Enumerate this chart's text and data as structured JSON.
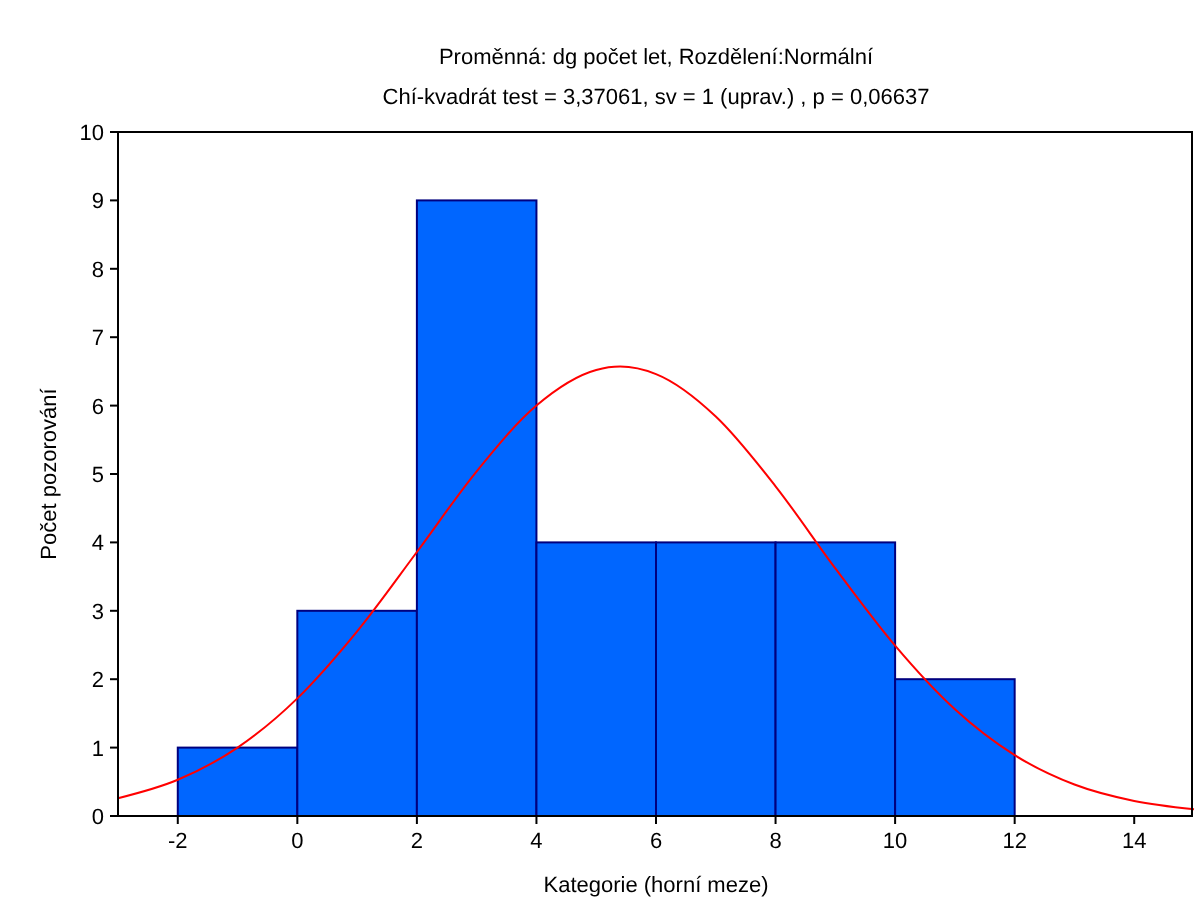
{
  "chart_data": {
    "type": "histogram",
    "title": "Proměnná: dg počet let, Rozdělení:Normální",
    "subtitle": "Chí-kvadrát test = 3,37061, sv = 1 (uprav.) , p = 0,06637",
    "xlabel": "Kategorie (horní meze)",
    "ylabel": "Počet pozorování",
    "bins": [
      -2,
      0,
      2,
      4,
      6,
      8,
      10,
      12
    ],
    "series": [
      {
        "color": "#0066ff",
        "values": [
          1,
          3,
          9,
          4,
          4,
          4,
          2
        ]
      },
      {
        "type": "line",
        "color": "#ff0000",
        "x": [
          -3,
          -2,
          -1,
          0,
          1,
          2,
          3,
          4,
          5,
          5.4,
          6,
          7,
          8,
          9,
          10,
          11,
          12,
          13,
          14,
          15
        ],
        "values": [
          0.26,
          0.53,
          1.0,
          1.72,
          2.7,
          3.86,
          5.04,
          6.0,
          6.52,
          6.57,
          6.46,
          5.84,
          4.82,
          3.62,
          2.49,
          1.56,
          0.89,
          0.46,
          0.22,
          0.1
        ]
      }
    ],
    "xlim": [
      -3,
      15
    ],
    "xticks": [
      -2,
      0,
      2,
      4,
      6,
      8,
      10,
      12,
      14
    ],
    "ylim": [
      0,
      10
    ],
    "yticks": [
      0,
      1,
      2,
      3,
      4,
      5,
      6,
      7,
      8,
      9,
      10
    ],
    "grid": false,
    "marker": "none"
  }
}
